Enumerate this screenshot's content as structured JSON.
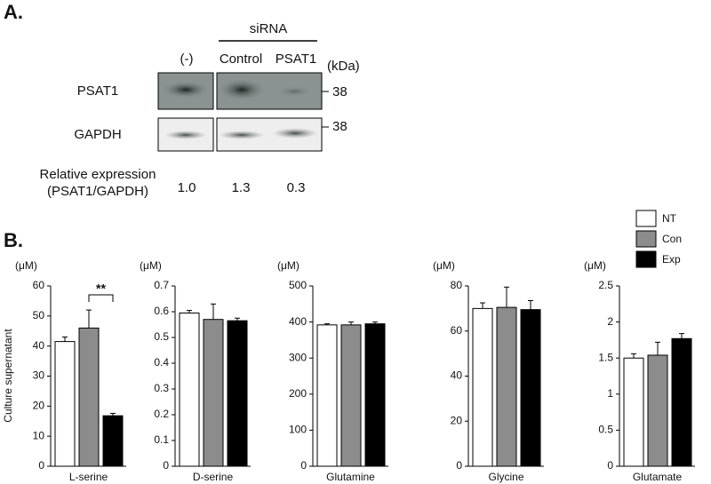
{
  "panel_a": {
    "label": "A.",
    "group_label": "siRNA",
    "lanes": [
      "(-)",
      "Control",
      "PSAT1"
    ],
    "unit": "(kDa)",
    "rows": [
      {
        "name": "PSAT1",
        "kda": 38
      },
      {
        "name": "GAPDH",
        "kda": 38
      }
    ],
    "relative_label": [
      "Relative expression",
      "(PSAT1/GAPDH)"
    ],
    "relative_values": [
      1.0,
      1.3,
      0.3
    ],
    "relative_value_labels": [
      "1.0",
      "1.3",
      "0.3"
    ]
  },
  "panel_b": {
    "label": "B.",
    "y_label": "Culture supernatant",
    "legend": [
      {
        "name": "NT",
        "color": "#ffffff"
      },
      {
        "name": "Con",
        "color": "#8c8c8c"
      },
      {
        "name": "Exp",
        "color": "#000000"
      }
    ]
  },
  "chart_data": [
    {
      "type": "bar",
      "unit": "(μM)",
      "xlabel": "L-serine",
      "ylim": [
        0,
        60
      ],
      "yticks": [
        0,
        10,
        20,
        30,
        40,
        50,
        60
      ],
      "values": [
        41.5,
        46,
        16.8
      ],
      "errors": [
        1.5,
        6,
        0.8
      ],
      "annotation": "**"
    },
    {
      "type": "bar",
      "unit": "(μM)",
      "xlabel": "D-serine",
      "ylim": [
        0,
        0.7
      ],
      "yticks": [
        0,
        0.1,
        0.2,
        0.3,
        0.4,
        0.5,
        0.6,
        0.7
      ],
      "values": [
        0.595,
        0.57,
        0.565
      ],
      "errors": [
        0.01,
        0.06,
        0.01
      ]
    },
    {
      "type": "bar",
      "unit": "(μM)",
      "xlabel": "Glutamine",
      "ylim": [
        0,
        500
      ],
      "yticks": [
        0,
        100,
        200,
        300,
        400,
        500
      ],
      "values": [
        392,
        392,
        395
      ],
      "errors": [
        3,
        8,
        5
      ]
    },
    {
      "type": "bar",
      "unit": "(μM)",
      "xlabel": "Glycine",
      "ylim": [
        0,
        80
      ],
      "yticks": [
        0,
        20,
        40,
        60,
        80
      ],
      "values": [
        70,
        70.5,
        69.5
      ],
      "errors": [
        2.5,
        9,
        4
      ]
    },
    {
      "type": "bar",
      "unit": "(μM)",
      "xlabel": "Glutamate",
      "ylim": [
        0,
        2.5
      ],
      "yticks": [
        0,
        0.5,
        1,
        1.5,
        2,
        2.5
      ],
      "values": [
        1.5,
        1.54,
        1.77
      ],
      "errors": [
        0.06,
        0.18,
        0.07
      ]
    }
  ]
}
